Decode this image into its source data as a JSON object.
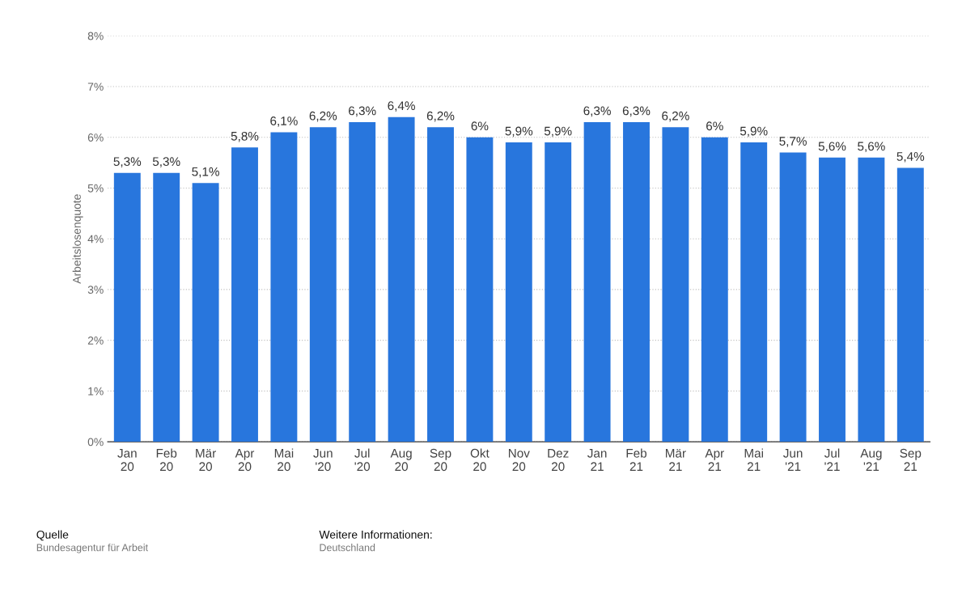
{
  "chart_data": {
    "type": "bar",
    "ylabel": "Arbeitslosenquote",
    "categories": [
      "Jan\n20",
      "Feb\n20",
      "Mär\n20",
      "Apr\n20",
      "Mai\n20",
      "Jun\n'20",
      "Jul\n'20",
      "Aug\n20",
      "Sep\n20",
      "Okt\n20",
      "Nov\n20",
      "Dez\n20",
      "Jan\n21",
      "Feb\n21",
      "Mär\n21",
      "Apr\n21",
      "Mai\n21",
      "Jun\n'21",
      "Jul\n'21",
      "Aug\n'21",
      "Sep\n21"
    ],
    "values": [
      5.3,
      5.3,
      5.1,
      5.8,
      6.1,
      6.2,
      6.3,
      6.4,
      6.2,
      6.0,
      5.9,
      5.9,
      6.3,
      6.3,
      6.2,
      6.0,
      5.9,
      5.7,
      5.6,
      5.6,
      5.4
    ],
    "value_labels": [
      "5,3%",
      "5,3%",
      "5,1%",
      "5,8%",
      "6,1%",
      "6,2%",
      "6,3%",
      "6,4%",
      "6,2%",
      "6%",
      "5,9%",
      "5,9%",
      "6,3%",
      "6,3%",
      "6,2%",
      "6%",
      "5,9%",
      "5,7%",
      "5,6%",
      "5,6%",
      "5,4%"
    ],
    "color": "#2876dd",
    "ylim": [
      0,
      8
    ],
    "yticks": [
      {
        "value": 0,
        "label": "0%"
      },
      {
        "value": 1,
        "label": "1%"
      },
      {
        "value": 2,
        "label": "2%"
      },
      {
        "value": 3,
        "label": "3%"
      },
      {
        "value": 4,
        "label": "4%"
      },
      {
        "value": 5,
        "label": "5%"
      },
      {
        "value": 6,
        "label": "6%"
      },
      {
        "value": 7,
        "label": "7%"
      },
      {
        "value": 8,
        "label": "8%"
      }
    ],
    "grid": "y",
    "annotations": [
      "Quelle",
      "Bundesagentur für Arbeit",
      "Weitere Informationen:",
      "Deutschland"
    ]
  }
}
